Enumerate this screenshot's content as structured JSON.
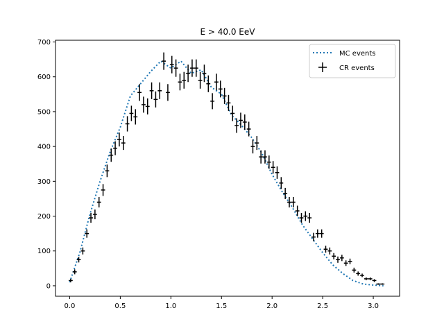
{
  "chart_data": {
    "type": "scatter",
    "title": "E > 40.0 EeV",
    "xlabel": "",
    "ylabel": "",
    "xlim": [
      -0.14,
      3.26
    ],
    "ylim": [
      -30,
      705
    ],
    "x_ticks": [
      0.0,
      0.5,
      1.0,
      1.5,
      2.0,
      2.5,
      3.0
    ],
    "x_tick_labels": [
      "0.0",
      "0.5",
      "1.0",
      "1.5",
      "2.0",
      "2.5",
      "3.0"
    ],
    "y_ticks": [
      0,
      100,
      200,
      300,
      400,
      500,
      600,
      700
    ],
    "y_tick_labels": [
      "0",
      "100",
      "200",
      "300",
      "400",
      "500",
      "600",
      "700"
    ],
    "legend": {
      "placement": "upper right",
      "entries": [
        "MC events",
        "CR events"
      ]
    },
    "series": [
      {
        "name": "MC events",
        "style": "dotted-line",
        "color": "#1f77b4",
        "x": [
          0.0,
          0.1,
          0.2,
          0.3,
          0.4,
          0.5,
          0.6,
          0.7,
          0.8,
          0.9,
          1.0,
          1.1,
          1.2,
          1.3,
          1.4,
          1.5,
          1.6,
          1.7,
          1.8,
          1.9,
          2.0,
          2.1,
          2.2,
          2.3,
          2.4,
          2.5,
          2.6,
          2.7,
          2.8,
          2.9,
          3.0,
          3.1
        ],
        "y": [
          10,
          95,
          205,
          300,
          385,
          455,
          545,
          580,
          615,
          645,
          625,
          645,
          610,
          620,
          570,
          550,
          490,
          460,
          425,
          380,
          320,
          270,
          225,
          175,
          135,
          95,
          60,
          35,
          15,
          5,
          2,
          0
        ]
      },
      {
        "name": "CR events",
        "style": "errorbar",
        "color": "#000000",
        "x": [
          0.01,
          0.05,
          0.09,
          0.13,
          0.17,
          0.21,
          0.25,
          0.29,
          0.33,
          0.37,
          0.41,
          0.45,
          0.49,
          0.53,
          0.57,
          0.61,
          0.65,
          0.69,
          0.73,
          0.77,
          0.81,
          0.85,
          0.89,
          0.93,
          0.97,
          1.01,
          1.05,
          1.09,
          1.13,
          1.17,
          1.21,
          1.25,
          1.29,
          1.33,
          1.37,
          1.41,
          1.45,
          1.49,
          1.53,
          1.57,
          1.61,
          1.65,
          1.69,
          1.73,
          1.77,
          1.81,
          1.85,
          1.89,
          1.93,
          1.97,
          2.01,
          2.05,
          2.09,
          2.13,
          2.17,
          2.21,
          2.25,
          2.29,
          2.33,
          2.37,
          2.41,
          2.45,
          2.49,
          2.53,
          2.57,
          2.61,
          2.65,
          2.69,
          2.73,
          2.77,
          2.81,
          2.85,
          2.89,
          2.93,
          2.97,
          3.01,
          3.05,
          3.09
        ],
        "y": [
          15,
          40,
          75,
          100,
          150,
          195,
          205,
          240,
          275,
          330,
          375,
          395,
          420,
          410,
          465,
          495,
          485,
          555,
          520,
          515,
          560,
          535,
          560,
          645,
          555,
          635,
          625,
          585,
          590,
          610,
          625,
          625,
          590,
          610,
          580,
          530,
          585,
          565,
          545,
          525,
          495,
          460,
          475,
          470,
          450,
          400,
          410,
          370,
          370,
          355,
          340,
          325,
          295,
          265,
          240,
          240,
          215,
          195,
          200,
          195,
          140,
          150,
          150,
          105,
          100,
          85,
          75,
          80,
          65,
          70,
          45,
          35,
          30,
          20,
          20,
          15,
          5,
          5
        ],
        "yerr": [
          5,
          7,
          8,
          10,
          12,
          14,
          14,
          15,
          17,
          18,
          19,
          20,
          20,
          20,
          22,
          22,
          22,
          24,
          23,
          23,
          24,
          23,
          24,
          25,
          24,
          25,
          25,
          24,
          24,
          25,
          25,
          25,
          24,
          25,
          24,
          23,
          24,
          24,
          23,
          23,
          22,
          21,
          22,
          22,
          21,
          20,
          20,
          19,
          19,
          19,
          18,
          18,
          17,
          16,
          15,
          15,
          15,
          14,
          14,
          14,
          12,
          12,
          12,
          10,
          10,
          9,
          9,
          9,
          8,
          8,
          7,
          6,
          5,
          4,
          4,
          4,
          2,
          2
        ],
        "xerr": 0.02
      }
    ]
  }
}
